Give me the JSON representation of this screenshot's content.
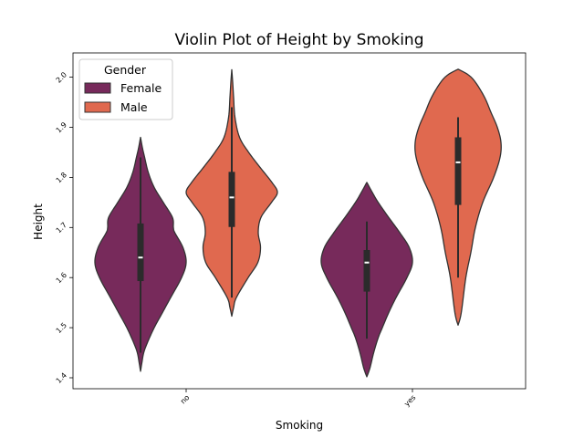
{
  "chart_data": {
    "type": "violin",
    "title": "Violin Plot of Height by Smoking",
    "xlabel": "Smoking",
    "ylabel": "Height",
    "categories": [
      "no",
      "yes"
    ],
    "yticks": [
      "1.4",
      "1.5",
      "1.6",
      "1.7",
      "1.8",
      "1.9",
      "2.0"
    ],
    "ylim": [
      1.38,
      2.05
    ],
    "grid": false,
    "legend": {
      "title": "Gender",
      "placement": "top-left"
    },
    "series": [
      {
        "name": "Female",
        "color": "#772a5b",
        "groups": [
          {
            "category": "no",
            "profile": [
              [
                1.413,
                0.0
              ],
              [
                1.43,
                0.03
              ],
              [
                1.45,
                0.07
              ],
              [
                1.47,
                0.15
              ],
              [
                1.5,
                0.3
              ],
              [
                1.53,
                0.48
              ],
              [
                1.56,
                0.66
              ],
              [
                1.6,
                0.9
              ],
              [
                1.63,
                1.0
              ],
              [
                1.66,
                0.93
              ],
              [
                1.69,
                0.75
              ],
              [
                1.7,
                0.72
              ],
              [
                1.72,
                0.7
              ],
              [
                1.75,
                0.5
              ],
              [
                1.78,
                0.3
              ],
              [
                1.81,
                0.17
              ],
              [
                1.84,
                0.09
              ],
              [
                1.86,
                0.04
              ],
              [
                1.88,
                0.0
              ]
            ],
            "q1": 1.593,
            "median": 1.64,
            "q3": 1.708,
            "whisker_low": 1.45,
            "whisker_high": 1.84
          },
          {
            "category": "yes",
            "profile": [
              [
                1.402,
                0.0
              ],
              [
                1.42,
                0.07
              ],
              [
                1.45,
                0.15
              ],
              [
                1.48,
                0.25
              ],
              [
                1.5,
                0.34
              ],
              [
                1.53,
                0.48
              ],
              [
                1.56,
                0.64
              ],
              [
                1.6,
                0.88
              ],
              [
                1.63,
                1.0
              ],
              [
                1.66,
                0.93
              ],
              [
                1.69,
                0.72
              ],
              [
                1.72,
                0.48
              ],
              [
                1.75,
                0.25
              ],
              [
                1.77,
                0.12
              ],
              [
                1.79,
                0.0
              ]
            ],
            "q1": 1.572,
            "median": 1.63,
            "q3": 1.655,
            "whisker_low": 1.478,
            "whisker_high": 1.712
          }
        ]
      },
      {
        "name": "Male",
        "color": "#e0694f",
        "groups": [
          {
            "category": "no",
            "profile": [
              [
                1.523,
                0.0
              ],
              [
                1.54,
                0.04
              ],
              [
                1.56,
                0.1
              ],
              [
                1.6,
                0.36
              ],
              [
                1.63,
                0.57
              ],
              [
                1.66,
                0.63
              ],
              [
                1.69,
                0.58
              ],
              [
                1.72,
                0.64
              ],
              [
                1.75,
                0.87
              ],
              [
                1.77,
                1.0
              ],
              [
                1.79,
                0.88
              ],
              [
                1.82,
                0.62
              ],
              [
                1.85,
                0.37
              ],
              [
                1.88,
                0.17
              ],
              [
                1.92,
                0.07
              ],
              [
                1.96,
                0.04
              ],
              [
                1.99,
                0.02
              ],
              [
                2.015,
                0.0
              ]
            ],
            "q1": 1.701,
            "median": 1.76,
            "q3": 1.811,
            "whisker_low": 1.56,
            "whisker_high": 1.94
          },
          {
            "category": "yes",
            "profile": [
              [
                1.505,
                0.0
              ],
              [
                1.53,
                0.07
              ],
              [
                1.6,
                0.17
              ],
              [
                1.65,
                0.28
              ],
              [
                1.7,
                0.38
              ],
              [
                1.75,
                0.54
              ],
              [
                1.8,
                0.78
              ],
              [
                1.84,
                0.92
              ],
              [
                1.87,
                0.94
              ],
              [
                1.9,
                0.86
              ],
              [
                1.93,
                0.72
              ],
              [
                1.96,
                0.58
              ],
              [
                1.99,
                0.38
              ],
              [
                2.005,
                0.22
              ],
              [
                2.016,
                0.0
              ]
            ],
            "q1": 1.745,
            "median": 1.83,
            "q3": 1.88,
            "whisker_low": 1.6,
            "whisker_high": 1.92
          }
        ]
      }
    ]
  }
}
